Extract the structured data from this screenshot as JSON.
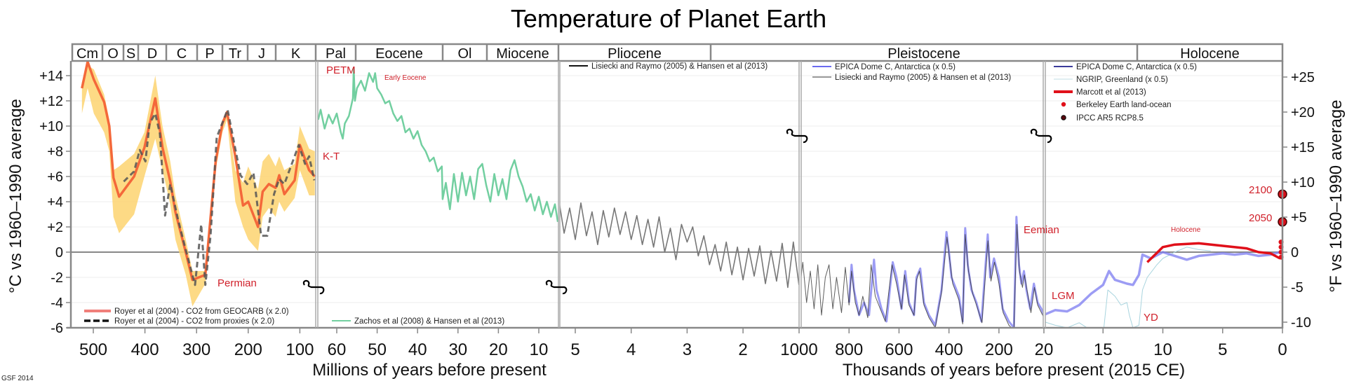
{
  "chart_data": {
    "type": "line",
    "title": "Temperature of Planet Earth",
    "credit": "GSF 2014",
    "ylabel_left": "°C vs 1960–1990 average",
    "ylabel_right": "°F vs 1960–1990 average",
    "xlabel_left": "Millions of years before present",
    "xlabel_right": "Thousands of years before present (2015 CE)",
    "ylim_c": [
      -6,
      15
    ],
    "grid": true,
    "yticks_left": [
      {
        "v": 14,
        "label": "+14"
      },
      {
        "v": 12,
        "label": "+12"
      },
      {
        "v": 10,
        "label": "+10"
      },
      {
        "v": 8,
        "label": "+8"
      },
      {
        "v": 6,
        "label": "+6"
      },
      {
        "v": 4,
        "label": "+4"
      },
      {
        "v": 2,
        "label": "+2"
      },
      {
        "v": 0,
        "label": "0"
      },
      {
        "v": -2,
        "label": "-2"
      },
      {
        "v": -4,
        "label": "-4"
      },
      {
        "v": -6,
        "label": "-6"
      }
    ],
    "yticks_right": [
      {
        "v": 25,
        "label": "+25"
      },
      {
        "v": 20,
        "label": "+20"
      },
      {
        "v": 15,
        "label": "+15"
      },
      {
        "v": 10,
        "label": "+10"
      },
      {
        "v": 5,
        "label": "+5"
      },
      {
        "v": 0,
        "label": "0"
      },
      {
        "v": -5,
        "label": "-5"
      },
      {
        "v": -10,
        "label": "-10"
      }
    ],
    "periods": [
      {
        "label": "Cm"
      },
      {
        "label": "O"
      },
      {
        "label": "S"
      },
      {
        "label": "D"
      },
      {
        "label": "C"
      },
      {
        "label": "P"
      },
      {
        "label": "Tr"
      },
      {
        "label": "J"
      },
      {
        "label": "K"
      },
      {
        "label": "Pal"
      },
      {
        "label": "Eocene"
      },
      {
        "label": "Ol"
      },
      {
        "label": "Miocene"
      },
      {
        "label": "Pliocene"
      },
      {
        "label": "Pleistocene"
      },
      {
        "label": "Holocene"
      }
    ],
    "panels": [
      {
        "unit": "Ma",
        "ticks": [
          {
            "v": 500,
            "label": "500"
          },
          {
            "v": 400,
            "label": "400"
          },
          {
            "v": 300,
            "label": "300"
          },
          {
            "v": 200,
            "label": "200"
          },
          {
            "v": 100,
            "label": "100"
          }
        ]
      },
      {
        "unit": "Ma",
        "ticks": [
          {
            "v": 60,
            "label": "60"
          },
          {
            "v": 50,
            "label": "50"
          },
          {
            "v": 40,
            "label": "40"
          },
          {
            "v": 30,
            "label": "30"
          },
          {
            "v": 20,
            "label": "20"
          },
          {
            "v": 10,
            "label": "10"
          }
        ]
      },
      {
        "unit": "Ma",
        "ticks": [
          {
            "v": 5,
            "label": "5"
          },
          {
            "v": 4,
            "label": "4"
          },
          {
            "v": 3,
            "label": "3"
          },
          {
            "v": 2,
            "label": "2"
          }
        ]
      },
      {
        "unit": "ky",
        "ticks": [
          {
            "v": 1000,
            "label": "1000"
          },
          {
            "v": 800,
            "label": "800"
          },
          {
            "v": 600,
            "label": "600"
          },
          {
            "v": 400,
            "label": "400"
          },
          {
            "v": 200,
            "label": "200"
          },
          {
            "v": 20,
            "label": "20"
          }
        ]
      },
      {
        "unit": "ky",
        "ticks": [
          {
            "v": 15,
            "label": "15"
          },
          {
            "v": 10,
            "label": "10"
          },
          {
            "v": 5,
            "label": "5"
          },
          {
            "v": 0,
            "label": "0"
          }
        ]
      }
    ],
    "legends": [
      {
        "text": "Royer et al (2004) - CO2 from GEOCARB (x 2.0)",
        "color": "#f07f7a",
        "style": "solid-thick"
      },
      {
        "text": "Royer et al (2004) - CO2 from proxies (x 2.0)",
        "color": "#111111",
        "style": "dashed"
      },
      {
        "text": "Zachos et al (2008) & Hansen et al (2013)",
        "color": "#72cfa0",
        "style": "solid"
      },
      {
        "text": "Lisiecki and Raymo (2005) & Hansen et al (2013)",
        "color": "#111111",
        "style": "solid"
      },
      {
        "text": "EPICA Dome C, Antarctica (x 0.5)",
        "color": "#6a6af0",
        "style": "solid"
      },
      {
        "text": "Lisiecki and Raymo (2005) & Hansen et al (2013)",
        "color": "#333333",
        "style": "thin"
      },
      {
        "text": "EPICA Dome C, Antarctica (x 0.5)",
        "color": "#3a3a9a",
        "style": "solid"
      },
      {
        "text": "NGRIP, Greenland (x 0.5)",
        "color": "#c0dce4",
        "style": "thin"
      },
      {
        "text": "Marcott et al (2013)",
        "color": "#e0101a",
        "style": "solid-thick"
      },
      {
        "text": "Berkeley Earth land-ocean",
        "color": "#e0101a",
        "style": "dot"
      },
      {
        "text": "IPCC AR5 RCP8.5",
        "color": "#5a0a10",
        "style": "dot-outlined"
      }
    ],
    "annotations": {
      "petm": "PETM",
      "early_eocene": "Early Eocene",
      "kt": "K-T",
      "permian": "Permian",
      "eemian": "Eemian",
      "lgm": "LGM",
      "yd": "YD",
      "holocene": "Holocene",
      "y2100": "2100",
      "y2050": "2050"
    },
    "colors": {
      "geocarb": "#f4683a",
      "band": "#fdd470",
      "proxies": "#555555",
      "zachos": "#72cfa0",
      "lisiecki": "#777777",
      "epica": "#7b7bf0",
      "lisiecki_thin": "#333333",
      "ngrip": "#a8d4de",
      "marcott": "#e0101a",
      "berkeley": "#e0101a",
      "ipcc": "#d8101a"
    },
    "uncertainty_band": {
      "panel": 1,
      "x": [
        522,
        511,
        499,
        479,
        469,
        461,
        450,
        421,
        401,
        380,
        366,
        351,
        341,
        321,
        308,
        283,
        263,
        250,
        241,
        225,
        210,
        200,
        181,
        172,
        160,
        147,
        140,
        130,
        110,
        100,
        82,
        71
      ],
      "upper": [
        13.5,
        14.8,
        14.5,
        12.5,
        10.5,
        6.5,
        6.8,
        7.8,
        9.5,
        14.0,
        10.0,
        7.2,
        4.5,
        1.0,
        -1.5,
        -1.5,
        7.5,
        10.5,
        11.0,
        6.5,
        5.5,
        6.8,
        5.0,
        7.2,
        7.8,
        6.8,
        7.6,
        6.5,
        7.0,
        10.0,
        8.2,
        8.0
      ],
      "lower": [
        11.0,
        13.0,
        11.0,
        9.5,
        8.0,
        2.8,
        1.5,
        3.0,
        6.0,
        9.0,
        6.5,
        3.8,
        1.0,
        -1.8,
        -4.3,
        -2.5,
        6.5,
        9.5,
        10.5,
        4.0,
        2.0,
        1.0,
        0.1,
        2.8,
        3.5,
        2.8,
        4.0,
        3.2,
        4.3,
        6.5,
        4.5,
        4.5
      ]
    },
    "series": [
      {
        "id": "geocarb",
        "panel": 1,
        "legend": 0,
        "x": [
          522,
          511,
          499,
          479,
          469,
          461,
          450,
          421,
          401,
          380,
          366,
          351,
          341,
          321,
          308,
          283,
          263,
          250,
          241,
          225,
          210,
          200,
          181,
          172,
          160,
          147,
          140,
          130,
          110,
          100,
          82,
          71
        ],
        "y": [
          13.0,
          15.1,
          13.7,
          11.9,
          10.0,
          5.9,
          4.4,
          6.0,
          8.3,
          12.2,
          8.3,
          5.6,
          3.2,
          0,
          -2.2,
          -1.8,
          7.2,
          10.2,
          11.1,
          7.6,
          3.7,
          4.0,
          2.0,
          4.8,
          5.4,
          5.1,
          6.1,
          4.6,
          5.7,
          8.5,
          6.5,
          6.0
        ]
      },
      {
        "id": "proxies",
        "panel": 1,
        "legend": 1,
        "x": [
          441,
          421,
          410,
          399,
          391,
          380,
          371,
          361,
          351,
          336,
          321,
          303,
          291,
          283,
          273,
          261,
          240,
          215,
          202,
          190,
          175,
          163,
          150,
          140,
          130,
          102,
          90,
          82,
          72
        ],
        "y": [
          5.6,
          6.4,
          8.1,
          7.2,
          10.2,
          11.0,
          9.4,
          2.9,
          5.4,
          2.6,
          0.2,
          -2.6,
          2.2,
          -2.6,
          1.3,
          9.1,
          11.3,
          6.1,
          5.4,
          6.3,
          1.3,
          1.3,
          4.6,
          5.8,
          5.4,
          8.5,
          7.0,
          7.6,
          5.7
        ]
      },
      {
        "id": "zachos",
        "panel": 2,
        "legend": 2,
        "x": [
          64.6,
          64,
          63,
          62,
          61,
          60,
          59,
          58.5,
          58,
          57,
          56.5,
          56,
          55.8,
          55.5,
          55,
          54,
          53,
          52,
          51,
          50.5,
          50,
          49,
          48,
          47,
          46,
          45,
          44,
          43,
          42,
          41,
          40,
          39,
          38,
          37,
          36,
          35,
          34,
          33.8,
          33,
          32,
          31,
          30,
          29,
          28,
          27,
          26,
          25,
          24,
          23,
          22,
          21,
          20,
          19,
          18,
          17,
          16,
          15,
          14,
          13,
          12,
          11,
          10,
          9,
          8,
          7,
          6,
          5.3
        ],
        "y": [
          10.5,
          11.3,
          9.8,
          10.9,
          10.2,
          11.0,
          9.5,
          9.0,
          10.2,
          10.8,
          11.5,
          12.2,
          14.6,
          12.0,
          13.0,
          13.6,
          12.8,
          14.2,
          13.5,
          14.2,
          13.0,
          12.5,
          11.8,
          12.0,
          11.0,
          10.4,
          10.8,
          9.5,
          9.8,
          9.0,
          9.6,
          8.5,
          8.0,
          7.2,
          7.5,
          6.4,
          6.8,
          4.2,
          5.5,
          3.4,
          6.2,
          4.0,
          6.3,
          4.5,
          6.0,
          4.2,
          6.6,
          7.0,
          5.3,
          4.0,
          6.2,
          4.5,
          5.8,
          4.2,
          6.5,
          7.3,
          6.0,
          5.2,
          4.0,
          4.6,
          3.3,
          4.4,
          3.0,
          4.0,
          2.8,
          3.8,
          2.4
        ]
      },
      {
        "id": "lisiecki",
        "panel": 3,
        "legend": 3,
        "x": [
          5.3,
          5.2,
          5.1,
          5.0,
          4.9,
          4.8,
          4.7,
          4.6,
          4.5,
          4.4,
          4.3,
          4.2,
          4.1,
          4.0,
          3.9,
          3.8,
          3.7,
          3.6,
          3.5,
          3.4,
          3.3,
          3.2,
          3.1,
          3.0,
          2.9,
          2.8,
          2.7,
          2.6,
          2.5,
          2.4,
          2.3,
          2.2,
          2.1,
          2.0,
          1.9,
          1.8,
          1.7,
          1.6,
          1.5,
          1.4,
          1.3,
          1.2,
          1.1,
          1.0
        ],
        "y": [
          4.3,
          1.5,
          3.5,
          1.0,
          3.9,
          1.3,
          3.2,
          0.6,
          3.3,
          1.2,
          3.5,
          1.4,
          3.2,
          1.0,
          2.9,
          0.6,
          2.6,
          0.4,
          2.8,
          0.0,
          1.9,
          -0.6,
          2.2,
          0.8,
          2.0,
          -0.3,
          1.3,
          -1.0,
          0.6,
          -1.5,
          0.8,
          -1.8,
          0.4,
          -2.2,
          0.3,
          -1.9,
          0.5,
          -2.5,
          0.1,
          -2.3,
          0.7,
          -2.8,
          0.8,
          -2.6
        ]
      },
      {
        "id": "epica-pleistocene",
        "panel": 4,
        "legend": 4,
        "x": [
          800,
          790,
          780,
          760,
          740,
          720,
          700,
          690,
          670,
          650,
          625,
          610,
          590,
          575,
          560,
          540,
          530,
          515,
          500,
          480,
          455,
          430,
          410,
          400,
          390,
          360,
          345,
          335,
          325,
          310,
          290,
          270,
          245,
          235,
          220,
          200,
          185,
          160,
          140,
          130,
          120,
          110,
          100,
          90,
          75,
          60,
          45,
          30,
          20
        ],
        "y": [
          -4,
          -1,
          -3,
          -5,
          -4,
          -5,
          -0.6,
          -3,
          -4.5,
          -5.5,
          -0.8,
          -2,
          -4.5,
          -1.5,
          -4,
          -5,
          -2,
          -1.3,
          -4,
          -5,
          -5.8,
          -3,
          1.6,
          0,
          -2,
          -3.5,
          -5.5,
          1.9,
          -1,
          -3,
          -4,
          -5.5,
          1.4,
          -2,
          -0.5,
          -2,
          -4.5,
          -5.5,
          -6,
          2.8,
          -1,
          -2.5,
          -1.5,
          -3,
          -4.5,
          -2.5,
          -4,
          -4.5,
          -5
        ]
      },
      {
        "id": "lisiecki-pleistocene",
        "panel": 4,
        "legend": 5,
        "x": [
          1000,
          985,
          970,
          955,
          940,
          925,
          910,
          895,
          880,
          865,
          850,
          830,
          815,
          800,
          790,
          775,
          760,
          745,
          725,
          712,
          695,
          675,
          655,
          628,
          610,
          590,
          578,
          560,
          540,
          530,
          518,
          500,
          480,
          455,
          430,
          408,
          398,
          385,
          360,
          345,
          335,
          322,
          305,
          285,
          268,
          244,
          232,
          218,
          200,
          183,
          160,
          140,
          128,
          118,
          106,
          98,
          85,
          72,
          58,
          45,
          30,
          20
        ],
        "y": [
          -3.5,
          -0.8,
          -4,
          -1.5,
          -4.5,
          -1,
          -5,
          -2,
          -1,
          -4.5,
          -2,
          -4.8,
          -1.2,
          -4.2,
          -1.5,
          -4,
          -5,
          -3.5,
          -5.2,
          -1,
          -3.5,
          -4.5,
          -5.5,
          -1,
          -2.5,
          -4.5,
          -1.8,
          -4.2,
          -5,
          -2.2,
          -1.5,
          -4.2,
          -5.2,
          -6,
          -3.2,
          1.2,
          -0.5,
          -2.5,
          -3.8,
          -5.7,
          1.4,
          -1.5,
          -3.3,
          -4.5,
          -5.6,
          0.9,
          -2.3,
          -0.8,
          -2.5,
          -4.8,
          -5.8,
          -6.2,
          2.2,
          -1.5,
          -2.8,
          -1.8,
          -3.3,
          -4.8,
          -2.8,
          -4.2,
          -4.8,
          -5.2
        ]
      },
      {
        "id": "ngrip",
        "panel": 5,
        "legend": 7,
        "x": [
          20,
          19,
          18,
          17,
          16,
          15.5,
          15,
          14.6,
          14,
          13.5,
          13,
          12.8,
          12.5,
          12,
          11.7,
          11.3,
          10.5,
          10,
          9,
          8,
          7,
          6
        ],
        "y": [
          -5.5,
          -5.8,
          -6,
          -5.6,
          -6.2,
          -6.4,
          -6.6,
          -3,
          -3.5,
          -4.2,
          -4,
          -5,
          -6,
          -5.8,
          -3,
          -2,
          -1,
          -0.5,
          0,
          0.4,
          0.2,
          0.1
        ]
      },
      {
        "id": "epica-holocene",
        "panel": 5,
        "legend": 6,
        "x": [
          20,
          19,
          18,
          17,
          16,
          15,
          14.5,
          14,
          13,
          12.5,
          12,
          11.7,
          11,
          10,
          9,
          8,
          7,
          6,
          5,
          4,
          3,
          2,
          1,
          0.2
        ],
        "y": [
          -5,
          -4.6,
          -4.7,
          -4.2,
          -3.3,
          -2.6,
          -1.5,
          -2.2,
          -2.5,
          -2.6,
          -1.8,
          -0.2,
          -0.5,
          0,
          -0.3,
          -0.6,
          -0.3,
          -0.2,
          -0.1,
          -0.2,
          -0.1,
          -0.3,
          -0.2,
          0
        ]
      },
      {
        "id": "marcott",
        "panel": 5,
        "legend": 8,
        "x": [
          11.3,
          10,
          9,
          7,
          5,
          3,
          2,
          1,
          0.2
        ],
        "y": [
          -0.8,
          0.4,
          0.6,
          0.7,
          0.5,
          0.3,
          0,
          -0.1,
          -0.5
        ]
      }
    ],
    "berkeley_points": {
      "panel": 5,
      "x": [
        0,
        0,
        0,
        0
      ],
      "y": [
        -0.4,
        0,
        0.4,
        0.8
      ]
    },
    "ipcc_points": {
      "panel": 5,
      "x": [
        0,
        0
      ],
      "y": [
        2.4,
        4.6
      ],
      "years": [
        "2050",
        "2100"
      ]
    }
  }
}
